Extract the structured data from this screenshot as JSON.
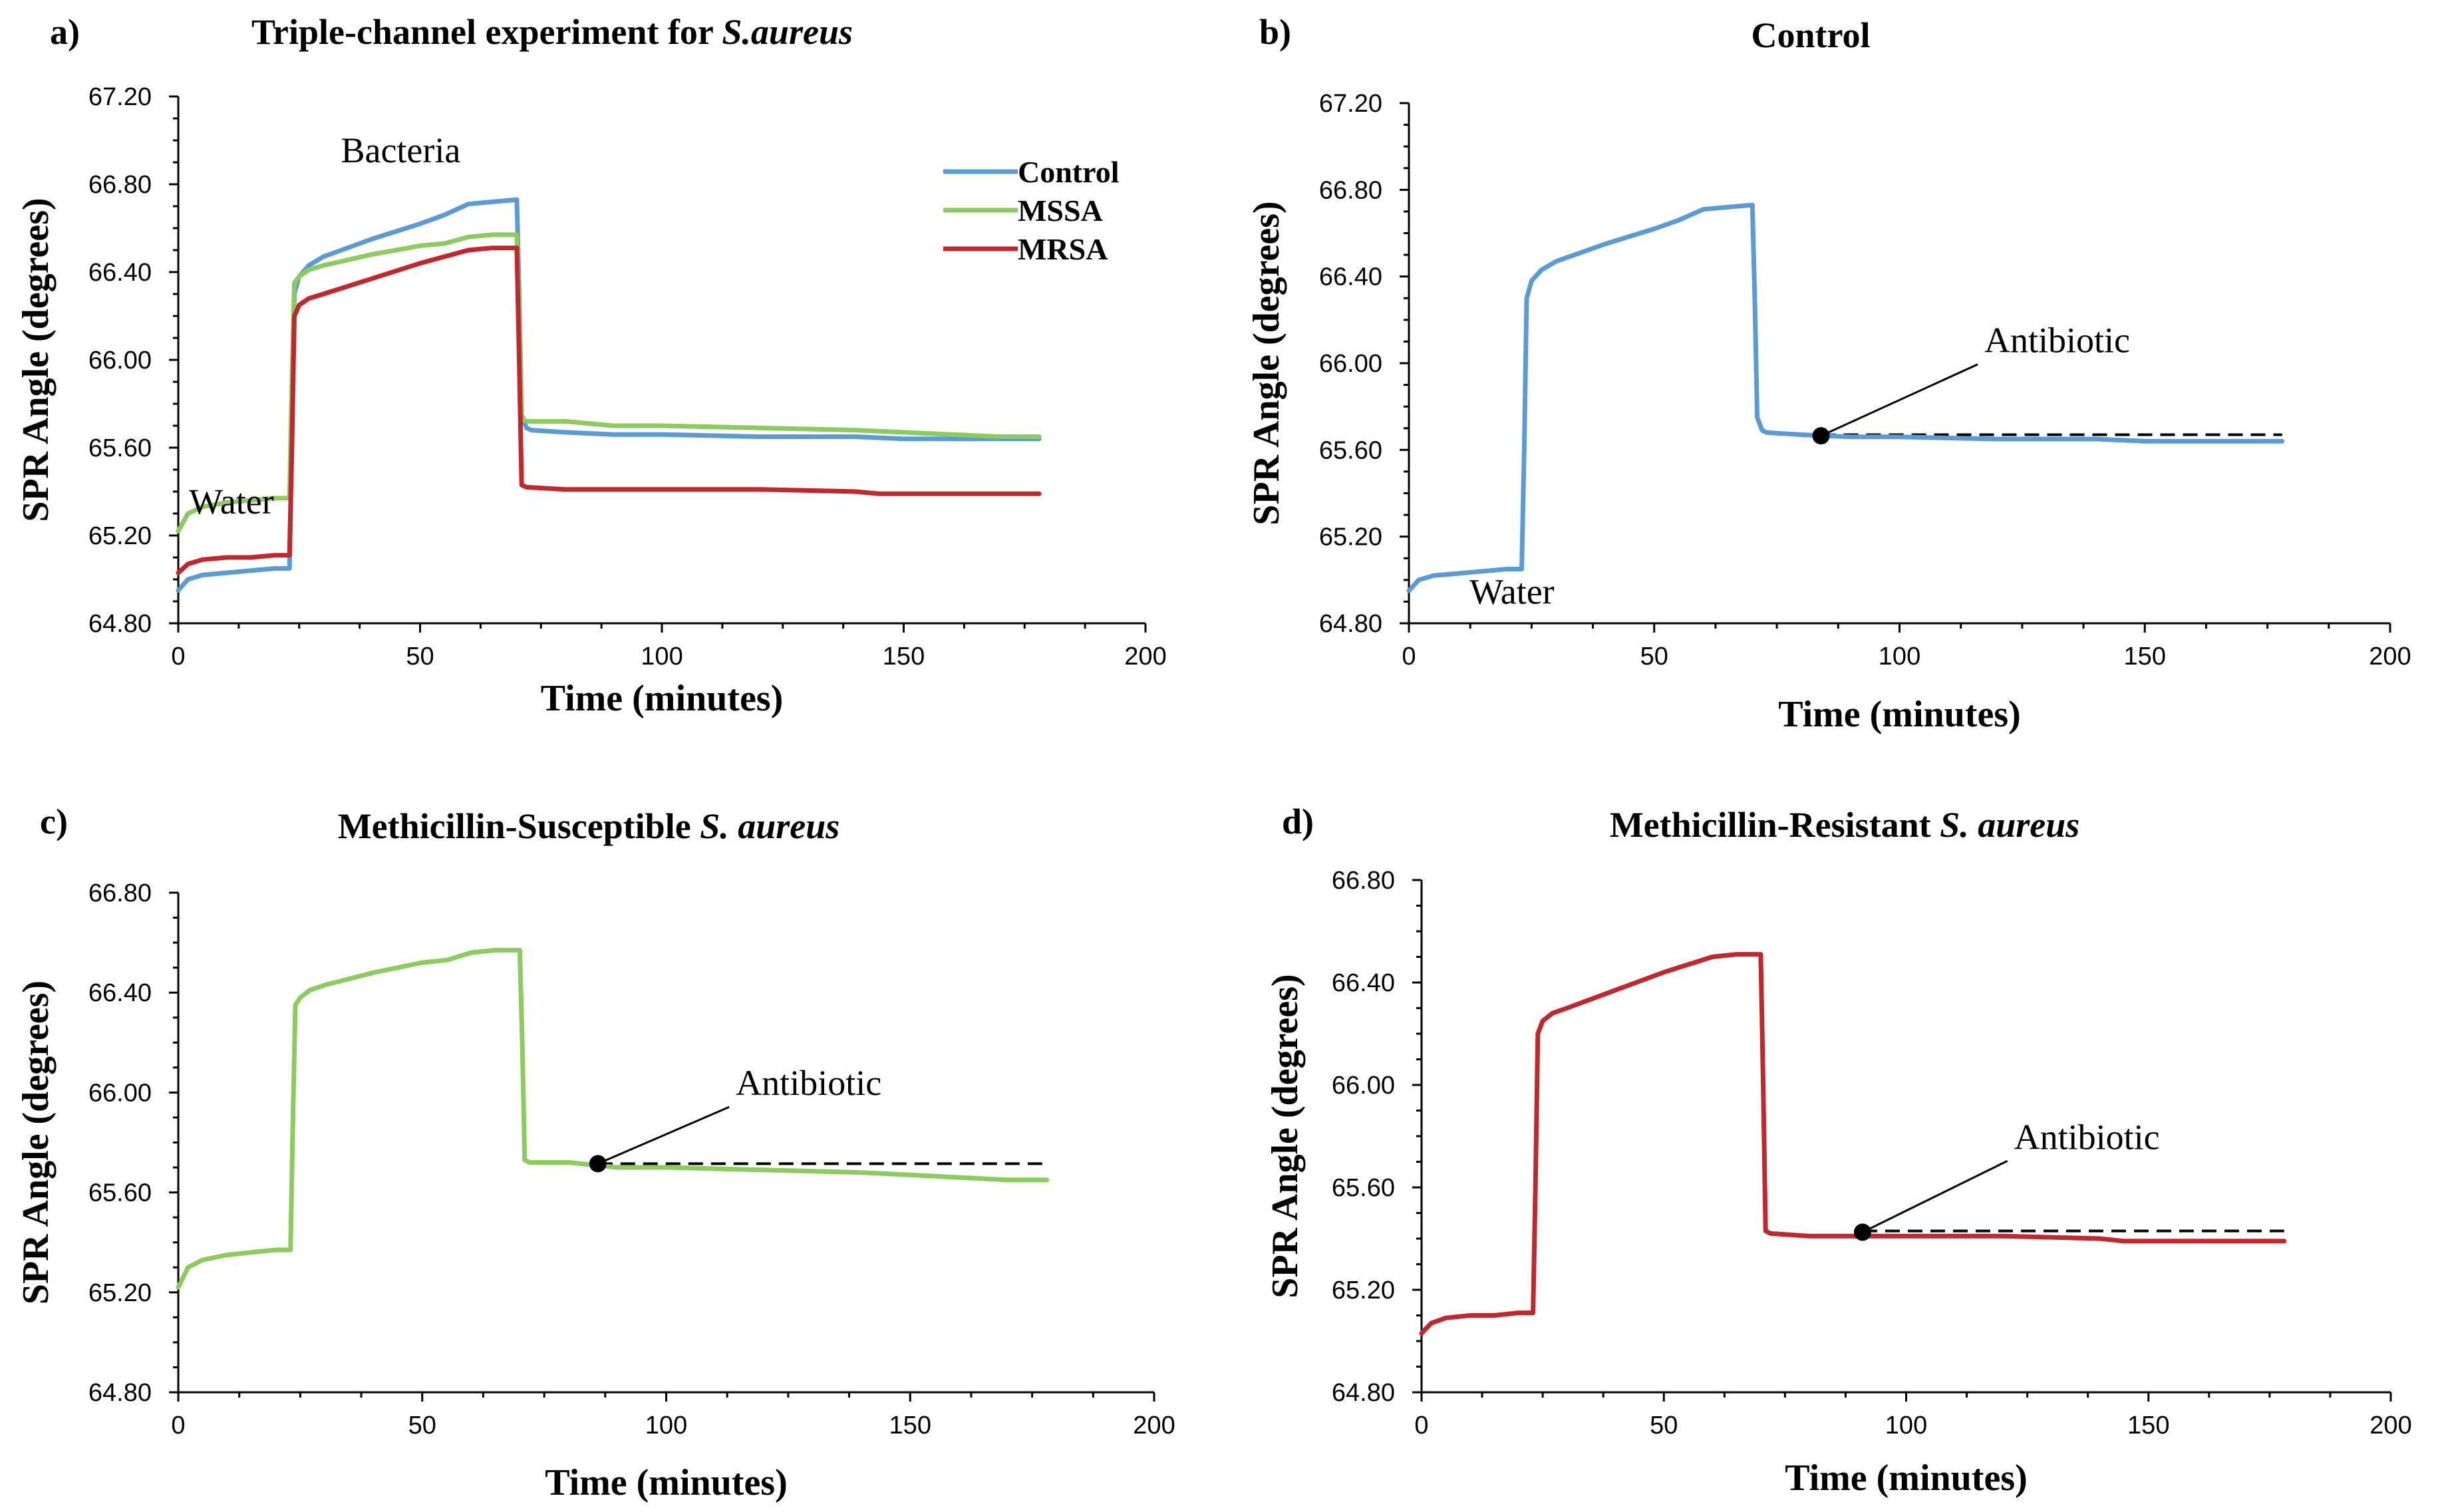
{
  "colors": {
    "Control": "#5b9bd5",
    "MSSA": "#8ccb5e",
    "MRSA": "#c0282d"
  },
  "chart_data": [
    {
      "type": "line",
      "panel_label": "a)",
      "title_prefix": "Triple-channel  experiment  for ",
      "title_italic": "S.aureus",
      "xlabel": "Time (minutes)",
      "ylabel": "SPR Angle (degrees)",
      "xlim": [
        0,
        200
      ],
      "ylim": [
        64.8,
        67.2
      ],
      "xticks": [
        0,
        50,
        100,
        150,
        200
      ],
      "yticks": [
        64.8,
        65.2,
        65.6,
        66.0,
        66.4,
        66.8,
        67.2
      ],
      "xtick_labels": [
        "0",
        "50",
        "100",
        "150",
        "200"
      ],
      "ytick_labels": [
        "64.80",
        "65.20",
        "65.60",
        "66.00",
        "66.40",
        "66.80",
        "67.20"
      ],
      "legend": [
        "Control",
        "MSSA",
        "MRSA"
      ],
      "annotations": [
        {
          "text": "Water",
          "x": 11,
          "y": 65.3
        },
        {
          "text": "Bacteria",
          "x": 46,
          "y": 66.9
        }
      ],
      "series": [
        {
          "name": "Control",
          "x": [
            0,
            2,
            5,
            10,
            15,
            20,
            23,
            23.5,
            24,
            25,
            27,
            30,
            40,
            50,
            55,
            60,
            65,
            70,
            70.5,
            71,
            72,
            73,
            80,
            90,
            100,
            120,
            140,
            150,
            160,
            170,
            178
          ],
          "values": [
            64.95,
            65.0,
            65.02,
            65.03,
            65.04,
            65.05,
            65.05,
            65.6,
            66.3,
            66.38,
            66.43,
            66.47,
            66.55,
            66.62,
            66.66,
            66.71,
            66.72,
            66.73,
            66.3,
            65.75,
            65.69,
            65.68,
            65.67,
            65.66,
            65.66,
            65.65,
            65.65,
            65.64,
            65.64,
            65.64,
            65.64
          ]
        },
        {
          "name": "MSSA",
          "x": [
            0,
            2,
            5,
            10,
            15,
            20,
            23,
            23.5,
            24,
            25,
            27,
            30,
            40,
            50,
            55,
            60,
            65,
            70,
            70.5,
            71,
            72,
            80,
            90,
            100,
            120,
            140,
            150,
            160,
            170,
            178
          ],
          "values": [
            65.22,
            65.3,
            65.33,
            65.35,
            65.36,
            65.37,
            65.37,
            65.9,
            66.35,
            66.38,
            66.41,
            66.43,
            66.48,
            66.52,
            66.53,
            66.56,
            66.57,
            66.57,
            66.2,
            65.73,
            65.72,
            65.72,
            65.7,
            65.7,
            65.69,
            65.68,
            65.67,
            65.66,
            65.65,
            65.65
          ]
        },
        {
          "name": "MRSA",
          "x": [
            0,
            2,
            5,
            10,
            15,
            20,
            23,
            23.5,
            24,
            25,
            27,
            30,
            40,
            50,
            55,
            60,
            65,
            70,
            70.5,
            71,
            72,
            80,
            90,
            100,
            120,
            140,
            145,
            150,
            160,
            170,
            178
          ],
          "values": [
            65.03,
            65.07,
            65.09,
            65.1,
            65.1,
            65.11,
            65.11,
            65.6,
            66.2,
            66.25,
            66.28,
            66.3,
            66.37,
            66.44,
            66.47,
            66.5,
            66.51,
            66.51,
            66.0,
            65.43,
            65.42,
            65.41,
            65.41,
            65.41,
            65.41,
            65.4,
            65.39,
            65.39,
            65.39,
            65.39,
            65.39
          ]
        }
      ]
    },
    {
      "type": "line",
      "panel_label": "b)",
      "title": "Control",
      "xlabel": "Time (minutes)",
      "ylabel": "SPR Angle (degrees)",
      "xlim": [
        0,
        200
      ],
      "ylim": [
        64.8,
        67.2
      ],
      "xticks": [
        0,
        50,
        100,
        150,
        200
      ],
      "yticks": [
        64.8,
        65.2,
        65.6,
        66.0,
        66.4,
        66.8,
        67.2
      ],
      "xtick_labels": [
        "0",
        "50",
        "100",
        "150",
        "200"
      ],
      "ytick_labels": [
        "64.80",
        "65.20",
        "65.60",
        "66.00",
        "66.40",
        "66.80",
        "67.20"
      ],
      "annotations": [
        {
          "text": "Water",
          "x": 21,
          "y": 64.89
        },
        {
          "text": "Antibiotic",
          "x": 120,
          "y": 66.05,
          "marker_x": 84,
          "marker_y": 65.665
        }
      ],
      "reference_line": {
        "x_start": 84,
        "x_end": 178,
        "y": 65.67
      },
      "series": [
        {
          "name": "Control",
          "x": [
            0,
            2,
            5,
            10,
            15,
            20,
            23,
            23.5,
            24,
            25,
            27,
            30,
            40,
            50,
            55,
            60,
            65,
            70,
            70.5,
            71,
            72,
            73,
            80,
            90,
            100,
            120,
            140,
            150,
            160,
            170,
            178
          ],
          "values": [
            64.95,
            65.0,
            65.02,
            65.03,
            65.04,
            65.05,
            65.05,
            65.6,
            66.3,
            66.38,
            66.43,
            66.47,
            66.55,
            66.62,
            66.66,
            66.71,
            66.72,
            66.73,
            66.3,
            65.75,
            65.69,
            65.68,
            65.67,
            65.66,
            65.66,
            65.65,
            65.65,
            65.64,
            65.64,
            65.64,
            65.64
          ]
        }
      ]
    },
    {
      "type": "line",
      "panel_label": "c)",
      "title_prefix": "Methicillin-Susceptible ",
      "title_italic": "S. aureus",
      "xlabel": "Time (minutes)",
      "ylabel": "SPR Angle (degrees)",
      "xlim": [
        0,
        200
      ],
      "ylim": [
        64.8,
        66.8
      ],
      "xticks": [
        0,
        50,
        100,
        150,
        200
      ],
      "yticks": [
        64.8,
        65.2,
        65.6,
        66.0,
        66.4,
        66.8
      ],
      "xtick_labels": [
        "0",
        "50",
        "100",
        "150",
        "200"
      ],
      "ytick_labels": [
        "64.80",
        "65.20",
        "65.60",
        "66.00",
        "66.40",
        "66.80"
      ],
      "annotations": [
        {
          "text": "Antibiotic",
          "x": 117,
          "y": 65.99,
          "marker_x": 86,
          "marker_y": 65.715
        }
      ],
      "reference_line": {
        "x_start": 86,
        "x_end": 178,
        "y": 65.715
      },
      "series": [
        {
          "name": "MSSA",
          "x": [
            0,
            2,
            5,
            10,
            15,
            20,
            23,
            23.5,
            24,
            25,
            27,
            30,
            40,
            50,
            55,
            60,
            65,
            70,
            70.5,
            71,
            72,
            80,
            90,
            100,
            120,
            140,
            150,
            160,
            170,
            178
          ],
          "values": [
            65.22,
            65.3,
            65.33,
            65.35,
            65.36,
            65.37,
            65.37,
            65.9,
            66.35,
            66.38,
            66.41,
            66.43,
            66.48,
            66.52,
            66.53,
            66.56,
            66.57,
            66.57,
            66.2,
            65.73,
            65.72,
            65.72,
            65.7,
            65.7,
            65.69,
            65.68,
            65.67,
            65.66,
            65.65,
            65.65
          ]
        }
      ]
    },
    {
      "type": "line",
      "panel_label": "d)",
      "title_prefix": "Methicillin-Resistant ",
      "title_italic": "S. aureus",
      "xlabel": "Time (minutes)",
      "ylabel": "SPR Angle (degrees)",
      "xlim": [
        0,
        200
      ],
      "ylim": [
        64.8,
        66.8
      ],
      "xticks": [
        0,
        50,
        100,
        150,
        200
      ],
      "yticks": [
        64.8,
        65.2,
        65.6,
        66.0,
        66.4,
        66.8
      ],
      "xtick_labels": [
        "0",
        "50",
        "100",
        "150",
        "200"
      ],
      "ytick_labels": [
        "64.80",
        "65.20",
        "65.60",
        "66.00",
        "66.40",
        "66.80"
      ],
      "annotations": [
        {
          "text": "Antibiotic",
          "x": 125,
          "y": 65.75,
          "marker_x": 91,
          "marker_y": 65.425
        }
      ],
      "reference_line": {
        "x_start": 91,
        "x_end": 178,
        "y": 65.43
      },
      "series": [
        {
          "name": "MRSA",
          "x": [
            0,
            2,
            5,
            10,
            15,
            20,
            23,
            23.5,
            24,
            25,
            27,
            30,
            40,
            50,
            55,
            60,
            65,
            70,
            70.5,
            71,
            72,
            80,
            90,
            100,
            120,
            140,
            145,
            150,
            160,
            170,
            178
          ],
          "values": [
            65.03,
            65.07,
            65.09,
            65.1,
            65.1,
            65.11,
            65.11,
            65.6,
            66.2,
            66.25,
            66.28,
            66.3,
            66.37,
            66.44,
            66.47,
            66.5,
            66.51,
            66.51,
            66.0,
            65.43,
            65.42,
            65.41,
            65.41,
            65.41,
            65.41,
            65.4,
            65.39,
            65.39,
            65.39,
            65.39,
            65.39
          ]
        }
      ]
    }
  ]
}
